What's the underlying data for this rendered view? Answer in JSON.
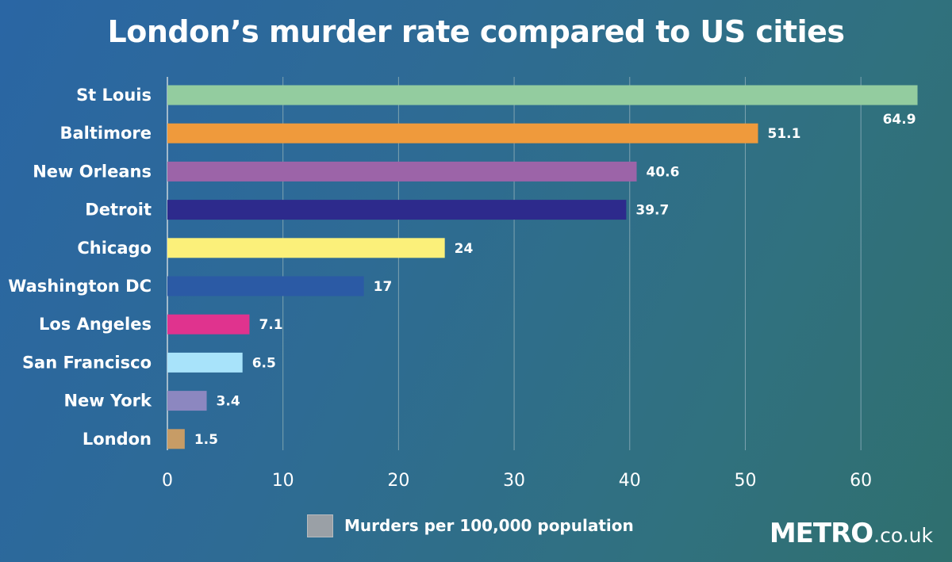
{
  "chart_data": {
    "type": "bar",
    "orientation": "horizontal",
    "title": "London’s murder rate compared to US cities",
    "categories": [
      "St Louis",
      "Baltimore",
      "New Orleans",
      "Detroit",
      "Chicago",
      "Washington DC",
      "Los Angeles",
      "San Francisco",
      "New York",
      "London"
    ],
    "values": [
      64.9,
      51.1,
      40.6,
      39.7,
      24,
      17,
      7.1,
      6.5,
      3.4,
      1.5
    ],
    "value_labels": [
      "64.9",
      "51.1",
      "40.6",
      "39.7",
      "24",
      "17",
      "7.1",
      "6.5",
      "3.4",
      "1.5"
    ],
    "bar_colors": [
      "#93cc9f",
      "#ef9a3c",
      "#9c64a8",
      "#2d2a8c",
      "#fbf07a",
      "#2b5aa5",
      "#e0338e",
      "#a8e3fa",
      "#8c87c0",
      "#c79c66"
    ],
    "xlim": [
      0,
      65
    ],
    "xticks": [
      "0",
      "10",
      "20",
      "30",
      "40",
      "50",
      "60"
    ],
    "xtick_values": [
      0,
      10,
      20,
      30,
      40,
      50,
      60
    ],
    "grid": true,
    "legend": {
      "label": "Murders per 100,000 population",
      "color": "#9aa0a6",
      "placement": "bottom-center"
    }
  },
  "brand": {
    "main": "METRO",
    "suffix": ".co.uk"
  }
}
